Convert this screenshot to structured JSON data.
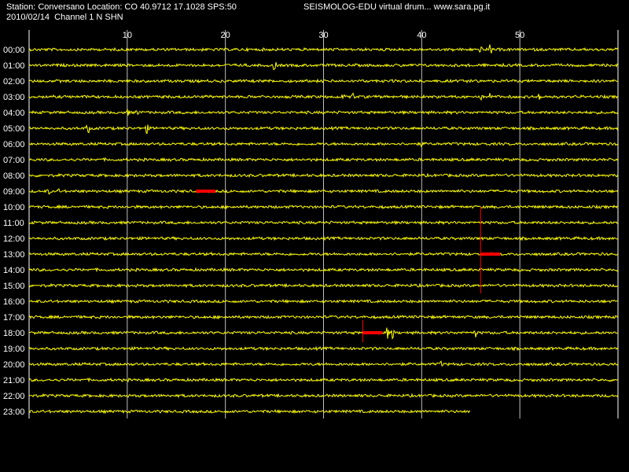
{
  "header": {
    "station_line": "Station: Conversano Location: CO 40.9712 17.1028 SPS:50",
    "date_line": "2010/02/14  Channel 1 N SHN",
    "site_line": "SEISMOLOG-EDU virtual drum... www.sara.pg.it"
  },
  "colors": {
    "background": "#000000",
    "trace": "#ffff00",
    "event": "#ff0000",
    "grid": "#ffffff",
    "text": "#ffffff"
  },
  "chart_data": {
    "type": "line",
    "description": "helicorder",
    "x_unit": "minutes",
    "xlim": [
      0,
      60
    ],
    "x_ticks": [
      10,
      20,
      30,
      40,
      50
    ],
    "x_tick_labels": [
      "10",
      "20",
      "30",
      "40",
      "50"
    ],
    "rows": [
      "00:00",
      "01:00",
      "02:00",
      "03:00",
      "04:00",
      "05:00",
      "06:00",
      "07:00",
      "08:00",
      "09:00",
      "10:00",
      "11:00",
      "12:00",
      "13:00",
      "14:00",
      "15:00",
      "16:00",
      "17:00",
      "18:00",
      "19:00",
      "20:00",
      "21:00",
      "22:00",
      "23:00"
    ],
    "last_row_end_minute": 45,
    "spikes": [
      {
        "row": 0,
        "minute": 47,
        "amp": 8
      },
      {
        "row": 0,
        "minute": 46,
        "amp": 4
      },
      {
        "row": 1,
        "minute": 25,
        "amp": 8
      },
      {
        "row": 1,
        "minute": 38,
        "amp": 3
      },
      {
        "row": 2,
        "minute": 45,
        "amp": 5
      },
      {
        "row": 3,
        "minute": 32,
        "amp": 4
      },
      {
        "row": 3,
        "minute": 33,
        "amp": 5
      },
      {
        "row": 3,
        "minute": 47,
        "amp": 6
      },
      {
        "row": 3,
        "minute": 52,
        "amp": 4
      },
      {
        "row": 3,
        "minute": 46,
        "amp": 4
      },
      {
        "row": 4,
        "minute": 10,
        "amp": 6
      },
      {
        "row": 4,
        "minute": 11,
        "amp": 4
      },
      {
        "row": 5,
        "minute": 6,
        "amp": 8
      },
      {
        "row": 5,
        "minute": 12,
        "amp": 7
      },
      {
        "row": 6,
        "minute": 40,
        "amp": 4
      },
      {
        "row": 9,
        "minute": 2,
        "amp": 4
      },
      {
        "row": 9,
        "minute": 3,
        "amp": 3
      },
      {
        "row": 18,
        "minute": 36.5,
        "amp": 8
      },
      {
        "row": 18,
        "minute": 37,
        "amp": 10
      },
      {
        "row": 18,
        "minute": 45.5,
        "amp": 5
      },
      {
        "row": 20,
        "minute": 42,
        "amp": 4
      }
    ],
    "event_markers": [
      {
        "row": 9,
        "start_minute": 17,
        "end_minute": 19
      },
      {
        "row": 13,
        "start_minute": 46,
        "end_minute": 48
      },
      {
        "row": 18,
        "start_minute": 34,
        "end_minute": 36
      }
    ],
    "event_verticals": [
      {
        "minute": 46,
        "from_row": 10,
        "to_row": 15.5
      },
      {
        "minute": 34,
        "from_row": 17.2,
        "to_row": 18.6
      }
    ]
  }
}
